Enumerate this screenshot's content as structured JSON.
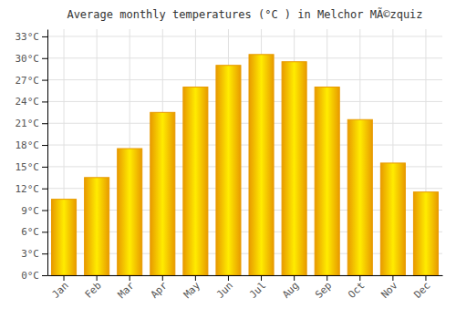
{
  "chart_data": {
    "type": "bar",
    "title": "Average monthly temperatures (°C ) in Melchor MÃ©zquiz",
    "categories": [
      "Jan",
      "Feb",
      "Mar",
      "Apr",
      "May",
      "Jun",
      "Jul",
      "Aug",
      "Sep",
      "Oct",
      "Nov",
      "Dec"
    ],
    "values": [
      10.5,
      13.5,
      17.5,
      22.5,
      26.0,
      29.0,
      30.5,
      29.5,
      26.0,
      21.5,
      15.5,
      11.5
    ],
    "color": "#E89A00",
    "ylim": [
      0,
      34
    ],
    "yticks": [
      {
        "value": 0,
        "label": "0°C"
      },
      {
        "value": 3,
        "label": "3°C"
      },
      {
        "value": 6,
        "label": "6°C"
      },
      {
        "value": 9,
        "label": "9°C"
      },
      {
        "value": 12,
        "label": "12°C"
      },
      {
        "value": 15,
        "label": "15°C"
      },
      {
        "value": 18,
        "label": "18°C"
      },
      {
        "value": 21,
        "label": "21°C"
      },
      {
        "value": 24,
        "label": "24°C"
      },
      {
        "value": 27,
        "label": "27°C"
      },
      {
        "value": 30,
        "label": "30°C"
      },
      {
        "value": 33,
        "label": "33°C"
      }
    ],
    "grid": true
  }
}
